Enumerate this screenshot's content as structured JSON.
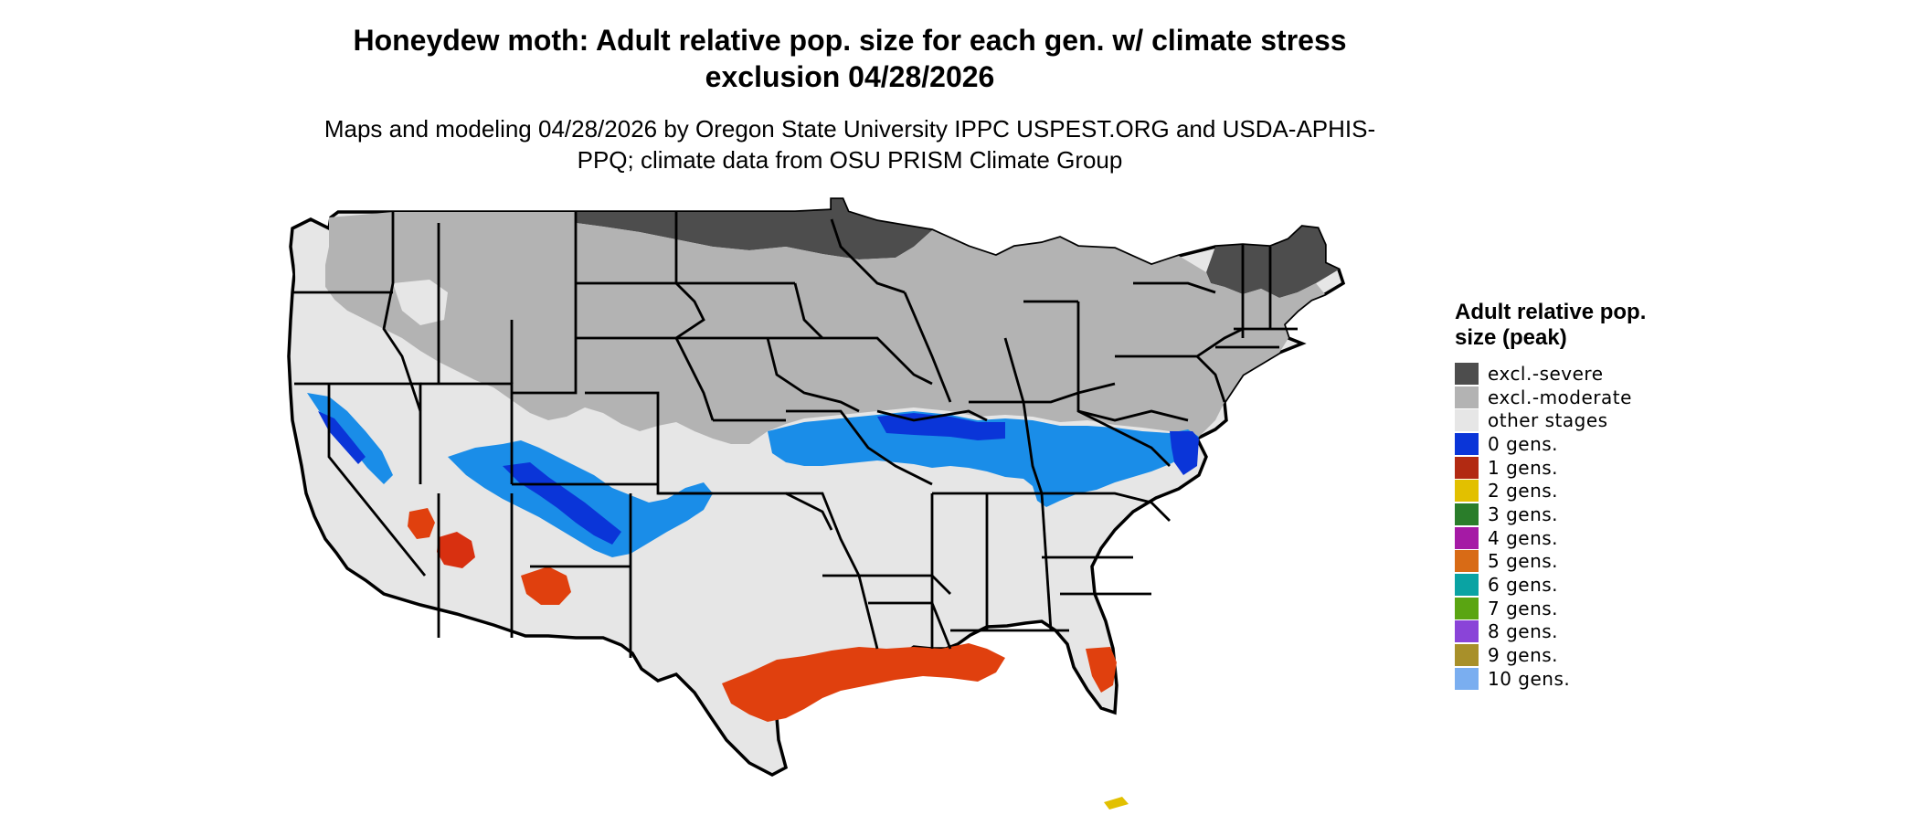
{
  "title": "Honeydew moth: Adult relative pop. size for each gen. w/ climate stress exclusion 04/28/2026",
  "subtitle": "Maps and modeling 04/28/2026 by Oregon State University IPPC USPEST.ORG and USDA-APHIS-PPQ; climate data from OSU PRISM Climate Group",
  "legend": {
    "title": "Adult relative pop. size (peak)",
    "items": [
      {
        "label": "excl.-severe",
        "color": "#4d4d4d"
      },
      {
        "label": "excl.-moderate",
        "color": "#b3b3b3"
      },
      {
        "label": "other stages",
        "color": "#e6e6e6"
      },
      {
        "label": "0 gens.",
        "color": "#0a35d8"
      },
      {
        "label": "1 gens.",
        "color": "#b22a12"
      },
      {
        "label": "2 gens.",
        "color": "#e2c000"
      },
      {
        "label": "3 gens.",
        "color": "#2a7d2a"
      },
      {
        "label": "4 gens.",
        "color": "#a51aa5"
      },
      {
        "label": "5 gens.",
        "color": "#d86b16"
      },
      {
        "label": "6 gens.",
        "color": "#0aa3a3"
      },
      {
        "label": "7 gens.",
        "color": "#5aa512"
      },
      {
        "label": "8 gens.",
        "color": "#8a44d8"
      },
      {
        "label": "9 gens.",
        "color": "#a8902a"
      },
      {
        "label": "10 gens.",
        "color": "#7aaef0"
      }
    ]
  }
}
